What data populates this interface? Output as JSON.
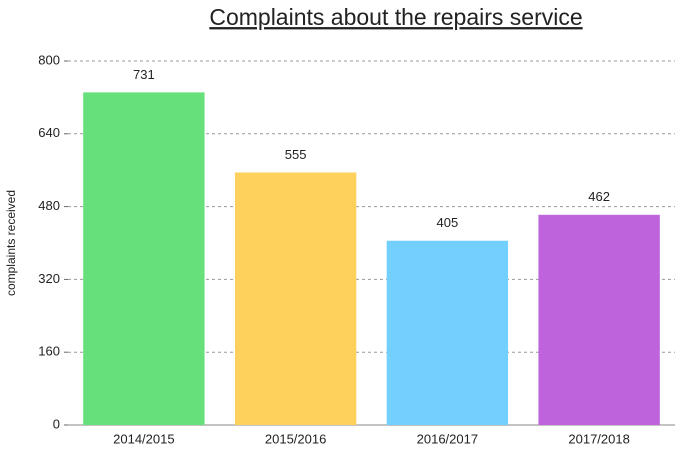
{
  "chart_data": {
    "type": "bar",
    "title": "Complaints about the repairs service",
    "y_label": "complaints received",
    "categories": [
      "2014/2015",
      "2015/2016",
      "2016/2017",
      "2017/2018"
    ],
    "values": [
      731,
      555,
      405,
      462
    ],
    "colors": [
      "#66e07a",
      "#fdd15c",
      "#73cffd",
      "#be63db"
    ],
    "ylim": [
      0,
      800
    ],
    "yticks": [
      0,
      160,
      320,
      480,
      640,
      800
    ],
    "grid": true
  }
}
